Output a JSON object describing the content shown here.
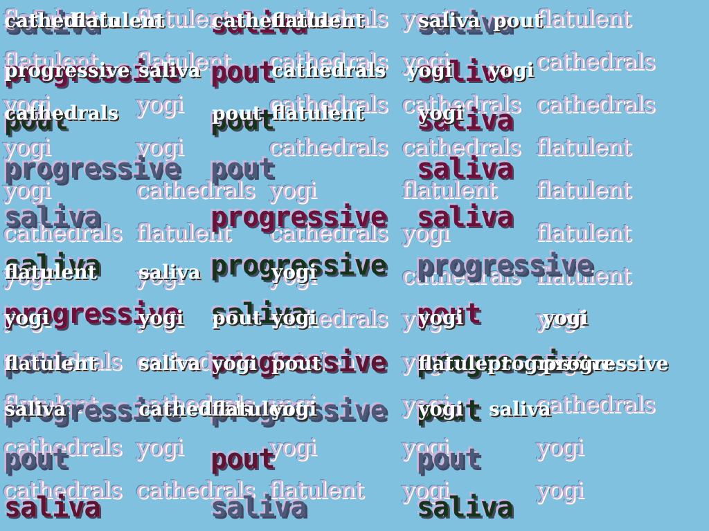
{
  "back_words": [
    [
      "flatulent",
      "flatulent",
      "cathedrals",
      "yogi",
      "flatulent"
    ],
    [
      "flatulent",
      "flatulent",
      "cathedrals",
      "yogi",
      "cathedrals"
    ],
    [
      "yogi",
      "yogi",
      "cathedrals",
      "cathedrals",
      "cathedrals"
    ],
    [
      "yogi",
      "yogi",
      "cathedrals",
      "cathedrals",
      "flatulent"
    ],
    [
      "yogi",
      "cathedrals",
      "yogi",
      "flatulent",
      "flatulent"
    ],
    [
      "cathedrals",
      "flatulent",
      "cathedrals",
      "yogi",
      "flatulent"
    ],
    [
      "yogi",
      "yogi",
      "yogi",
      "cathedrals",
      "flatulent"
    ],
    [
      "yogi",
      "yogi",
      "cathedrals",
      "yogi",
      "yogi"
    ],
    [
      "cathedrals",
      "cathedrals",
      "flatulent",
      "yogi",
      "yogi"
    ],
    [
      "flatulent",
      "cathedrals",
      "yogi",
      "yogi",
      "cathedrals"
    ],
    [
      "cathedrals",
      "yogi",
      "yogi",
      "yogi",
      "yogi"
    ],
    [
      "cathedrals",
      "cathedrals",
      "flatulent",
      "yogi",
      "yogi"
    ]
  ],
  "front_words": [
    [
      {
        "t": "saliva",
        "c": "slate"
      },
      {
        "t": "saliva",
        "c": "maroon"
      },
      {
        "t": "saliva",
        "c": "slate"
      }
    ],
    [
      {
        "t": "progressive",
        "c": "maroon"
      },
      {
        "t": "pout",
        "c": "maroon"
      },
      {
        "t": "saliva",
        "c": "maroon"
      }
    ],
    [
      {
        "t": "pout",
        "c": "green"
      },
      {
        "t": "pout",
        "c": "green"
      },
      {
        "t": "saliva",
        "c": "maroon"
      }
    ],
    [
      {
        "t": "progressive",
        "c": "slate"
      },
      {
        "t": "pout",
        "c": "slate"
      },
      {
        "t": "saliva",
        "c": "maroon"
      }
    ],
    [
      {
        "t": "saliva",
        "c": "slate"
      },
      {
        "t": "progressive",
        "c": "maroon"
      },
      {
        "t": "saliva",
        "c": "maroon"
      }
    ],
    [
      {
        "t": "saliva",
        "c": "green"
      },
      {
        "t": "progressive",
        "c": "green"
      },
      {
        "t": "progressive",
        "c": "slate"
      }
    ],
    [
      {
        "t": "progressive",
        "c": "maroon"
      },
      {
        "t": "saliva",
        "c": "green"
      },
      {
        "t": "pout",
        "c": "maroon"
      }
    ],
    [
      {
        "t": "pout",
        "c": "slate"
      },
      {
        "t": "progressive",
        "c": "wine"
      },
      {
        "t": "progressive",
        "c": "green"
      }
    ],
    [
      {
        "t": "progressive",
        "c": "slate"
      },
      {
        "t": "progressive",
        "c": "slate"
      },
      {
        "t": "pout",
        "c": "green"
      }
    ],
    [
      {
        "t": "pout",
        "c": "slate"
      },
      {
        "t": "pout",
        "c": "wine"
      },
      {
        "t": "pout",
        "c": "slate"
      }
    ],
    [
      {
        "t": "saliva",
        "c": "wine"
      },
      {
        "t": "saliva",
        "c": "slate"
      },
      {
        "t": "saliva",
        "c": "green"
      }
    ]
  ],
  "overlay_words": [
    "cathedrals",
    "flatulent",
    "cathedrals",
    "flatulent",
    "saliva",
    "pout",
    "progressive",
    "saliva",
    "cathedrals",
    "yogi",
    "yogi",
    "cathedrals",
    "pout",
    "flatulent",
    "yogi",
    "flatulent",
    "saliva",
    "yogi",
    "yogi",
    "yogi",
    "pout",
    "yogi",
    "yogi",
    "yogi",
    "flatulent",
    "saliva",
    "yogi",
    "pout",
    "flatulent",
    "progressive",
    "saliva",
    "cathedrals",
    "flatulent",
    "yogi",
    "yogi",
    "saliva",
    "progressive"
  ]
}
